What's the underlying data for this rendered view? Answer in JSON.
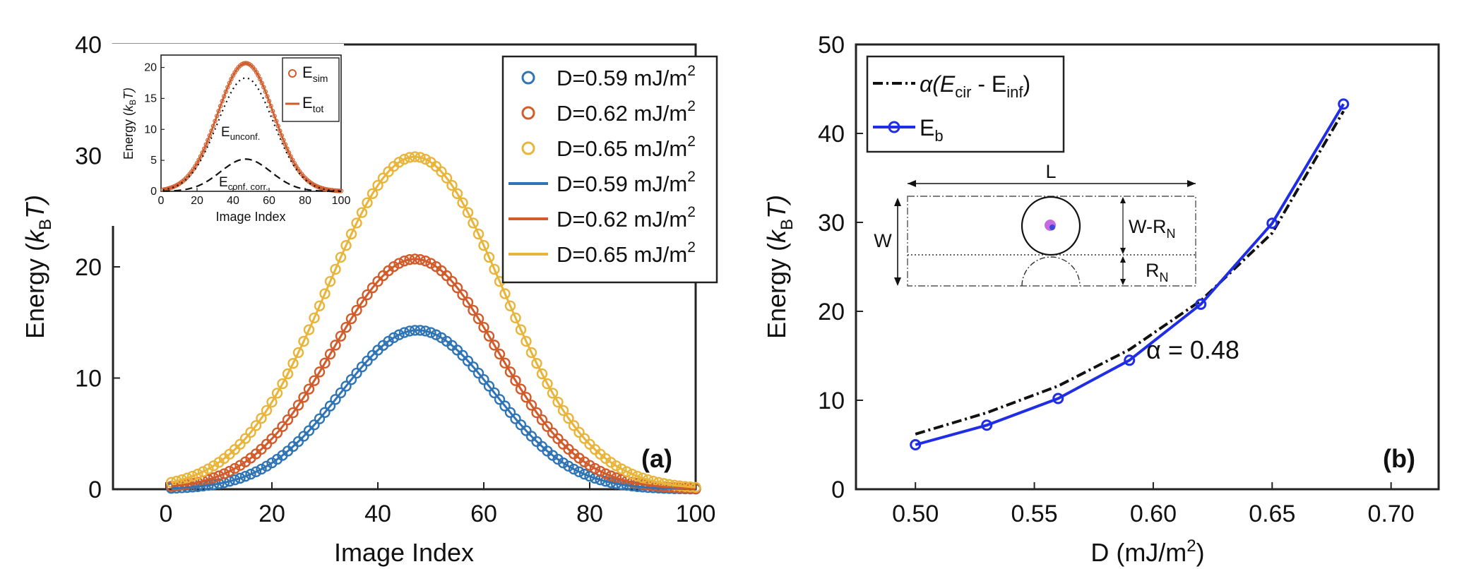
{
  "chart_data": [
    {
      "id": "a",
      "type": "scatter+line",
      "panel_label": "(a)",
      "xlabel": "Image Index",
      "ylabel": "Energy (",
      "ylabel_sym": "k",
      "ylabel_sub": "B",
      "ylabel_tail": "T)",
      "xlim": [
        -10,
        100
      ],
      "ylim": [
        0,
        40
      ],
      "xticks": [
        0,
        20,
        40,
        60,
        80,
        100
      ],
      "yticks": [
        0,
        10,
        20,
        30,
        40
      ],
      "legend_position": "top-right",
      "series": [
        {
          "name": "D=0.59 mJ/m",
          "sup": "2",
          "style": "circle",
          "color": "#2f75b5",
          "peak": 14.3,
          "center": 47.5,
          "sigma": 14.5,
          "x_range": [
            1,
            100
          ],
          "step": 1
        },
        {
          "name": "D=0.62 mJ/m",
          "sup": "2",
          "style": "circle",
          "color": "#d15b2a",
          "peak": 20.7,
          "center": 47,
          "sigma": 15.5,
          "x_range": [
            1,
            100
          ],
          "step": 1
        },
        {
          "name": "D=0.65 mJ/m",
          "sup": "2",
          "style": "circle",
          "color": "#e8b53a",
          "peak": 29.9,
          "center": 47,
          "sigma": 16.5,
          "x_range": [
            1,
            100
          ],
          "step": 1
        },
        {
          "name": "D=0.59 mJ/m",
          "sup": "2",
          "style": "line",
          "color": "#2f75b5",
          "peak": 14.3,
          "center": 47.5,
          "sigma": 14.5,
          "x_range": [
            1,
            100
          ]
        },
        {
          "name": "D=0.62 mJ/m",
          "sup": "2",
          "style": "line",
          "color": "#d15b2a",
          "peak": 20.7,
          "center": 47,
          "sigma": 15.5,
          "x_range": [
            1,
            100
          ]
        },
        {
          "name": "D=0.65 mJ/m",
          "sup": "2",
          "style": "line",
          "color": "#e8b53a",
          "peak": 29.9,
          "center": 47,
          "sigma": 16.5,
          "x_range": [
            1,
            100
          ]
        }
      ],
      "inset": {
        "xlabel": "Image Index",
        "ylabel": "Energy (",
        "ylabel_sym": "k",
        "ylabel_sub": "B",
        "ylabel_tail": "T)",
        "xlim": [
          0,
          100
        ],
        "ylim": [
          0,
          22
        ],
        "xticks": [
          0,
          20,
          40,
          60,
          80,
          100
        ],
        "yticks": [
          0,
          5,
          10,
          15,
          20
        ],
        "legend": [
          {
            "name": "E",
            "sub": "sim",
            "style": "circle",
            "color": "#d15b2a"
          },
          {
            "name": "E",
            "sub": "tot",
            "style": "line",
            "color": "#d15b2a"
          }
        ],
        "curves": [
          {
            "name": "E_sim",
            "style": "circle",
            "color": "#d15b2a",
            "peak": 20.7,
            "center": 47,
            "sigma": 15.5,
            "x_range": [
              1,
              100
            ],
            "step": 1
          },
          {
            "name": "E_tot",
            "style": "line",
            "color": "#d15b2a",
            "peak": 20.7,
            "center": 47,
            "sigma": 15.5,
            "x_range": [
              1,
              100
            ]
          },
          {
            "name": "E_unconf",
            "style": "dotted",
            "color": "#111111",
            "peak": 18.3,
            "center": 47,
            "sigma": 15.5,
            "x_range": [
              1,
              100
            ]
          },
          {
            "name": "E_conf_corr",
            "style": "dashed",
            "color": "#111111",
            "peak": 5.2,
            "center": 47,
            "sigma": 14,
            "x_range": [
              1,
              100
            ]
          }
        ],
        "annotations": [
          {
            "text": "E",
            "sub": "unconf."
          },
          {
            "text": "E",
            "sub": "conf. corr."
          }
        ]
      }
    },
    {
      "id": "b",
      "type": "line",
      "panel_label": "(b)",
      "xlabel": "D (mJ/m",
      "xlabel_sup": "2",
      "xlabel_tail": ")",
      "ylabel": "Energy (",
      "ylabel_sym": "k",
      "ylabel_sub": "B",
      "ylabel_tail": "T)",
      "xlim": [
        0.475,
        0.72
      ],
      "ylim": [
        0,
        50
      ],
      "xticks": [
        "0.50",
        "0.55",
        "0.60",
        "0.65",
        "0.70"
      ],
      "yticks": [
        0,
        10,
        20,
        30,
        40,
        50
      ],
      "legend_position": "top-left",
      "x": [
        0.5,
        0.53,
        0.56,
        0.59,
        0.62,
        0.65,
        0.68
      ],
      "series": [
        {
          "name": "α(E",
          "name_sub1": "cir",
          "name_mid": " - E",
          "name_sub2": "inf",
          "name_tail": ")",
          "style": "dash-dot",
          "color": "#111111",
          "values": [
            6.2,
            8.6,
            11.6,
            15.7,
            21.2,
            28.8,
            42.5
          ]
        },
        {
          "name": "E",
          "name_sub1": "b",
          "style": "line-circle",
          "color": "#1f2ee6",
          "values": [
            5.0,
            7.2,
            10.2,
            14.5,
            20.8,
            29.9,
            43.3
          ]
        }
      ],
      "annotation": {
        "text": "α = 0.48"
      },
      "diagram": {
        "L": "L",
        "W": "W",
        "WRN": "W-R",
        "WRN_sub": "N",
        "RN": "R",
        "RN_sub": "N"
      }
    }
  ]
}
